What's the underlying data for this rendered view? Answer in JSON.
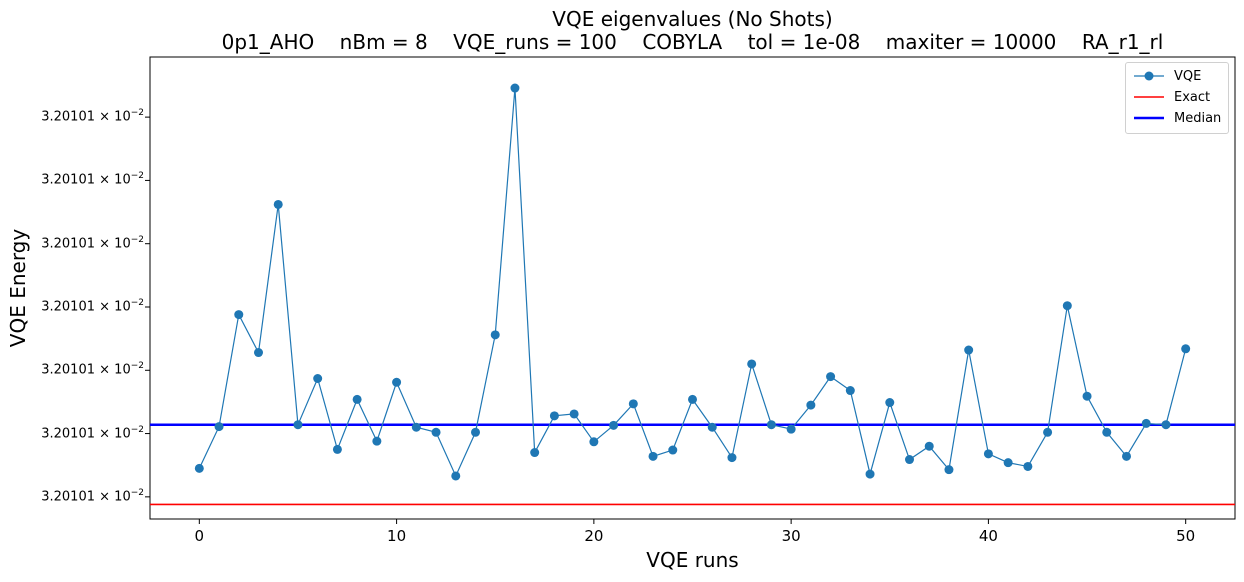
{
  "chart_data": {
    "type": "line",
    "title_line1": "VQE eigenvalues (No Shots)",
    "title_line2": "0p1_AHO    nBm = 8    VQE_runs = 100    COBYLA    tol = 1e-08    maxiter = 10000    RA_r1_rl",
    "xlabel": "VQE runs",
    "ylabel": "VQE Energy",
    "xlim": [
      -2.5,
      52.5
    ],
    "x_ticks": [
      0,
      10,
      20,
      30,
      40,
      50
    ],
    "y_ticks": [
      0,
      1,
      2,
      3,
      4,
      5,
      6
    ],
    "y_tick_label_mantissa": "3.20101",
    "y_tick_label_base": "10",
    "y_tick_label_exponent": "−2",
    "y_axis_note": "all tick labels print the same value; y shown in relative units (0 = lowest tick, 6 = highest tick)",
    "ylim": [
      -0.35,
      6.95
    ],
    "grid": false,
    "legend_position": "top-right",
    "series": [
      {
        "name": "VQE",
        "color": "#1f77b4",
        "style": "line-with-markers",
        "x": [
          0,
          1,
          2,
          3,
          4,
          5,
          6,
          7,
          8,
          9,
          10,
          11,
          12,
          13,
          14,
          15,
          16,
          17,
          18,
          19,
          20,
          21,
          22,
          23,
          24,
          25,
          26,
          27,
          28,
          29,
          30,
          31,
          32,
          33,
          34,
          35,
          36,
          37,
          38,
          39,
          40,
          41,
          42,
          43,
          44,
          45,
          46,
          47,
          48,
          49,
          50
        ],
        "y": [
          0.45,
          1.11,
          2.88,
          2.28,
          4.62,
          1.14,
          1.87,
          0.75,
          1.54,
          0.88,
          1.81,
          1.1,
          1.02,
          0.33,
          1.02,
          2.56,
          6.46,
          0.7,
          1.28,
          1.31,
          0.87,
          1.13,
          1.47,
          0.64,
          0.74,
          1.54,
          1.1,
          0.62,
          2.1,
          1.14,
          1.07,
          1.45,
          1.9,
          1.68,
          0.36,
          1.49,
          0.59,
          0.8,
          0.43,
          2.32,
          0.68,
          0.54,
          0.48,
          1.02,
          3.02,
          1.59,
          1.02,
          0.64,
          1.16,
          1.14,
          2.34
        ]
      },
      {
        "name": "Exact",
        "color": "#ff0000",
        "style": "horizontal-line",
        "y": -0.12
      },
      {
        "name": "Median",
        "color": "#0000ff",
        "style": "horizontal-line",
        "y": 1.14
      }
    ]
  }
}
